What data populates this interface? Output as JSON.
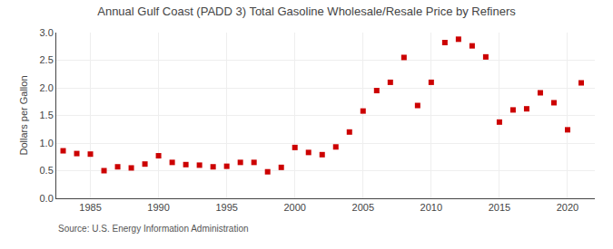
{
  "chart_data": {
    "type": "scatter",
    "title": "Annual Gulf Coast (PADD 3) Total Gasoline Wholesale/Resale Price by Refiners",
    "ylabel": "Dollars per Gallon",
    "annotations": [
      "Source: U.S. Energy Information Administration"
    ],
    "x": [
      1983,
      1984,
      1985,
      1986,
      1987,
      1988,
      1989,
      1990,
      1991,
      1992,
      1993,
      1994,
      1995,
      1996,
      1997,
      1998,
      1999,
      2000,
      2001,
      2002,
      2003,
      2004,
      2005,
      2006,
      2007,
      2008,
      2009,
      2010,
      2011,
      2012,
      2013,
      2014,
      2015,
      2016,
      2017,
      2018,
      2019,
      2020,
      2021
    ],
    "values": [
      0.86,
      0.81,
      0.8,
      0.5,
      0.57,
      0.55,
      0.62,
      0.77,
      0.65,
      0.61,
      0.6,
      0.57,
      0.58,
      0.65,
      0.65,
      0.48,
      0.56,
      0.92,
      0.83,
      0.79,
      0.93,
      1.2,
      1.58,
      1.95,
      2.1,
      2.55,
      1.68,
      2.1,
      2.82,
      2.88,
      2.76,
      2.56,
      1.38,
      1.6,
      1.62,
      1.91,
      1.73,
      1.24,
      2.09
    ],
    "color": "#cc0000",
    "marker": "square",
    "xlim": [
      1982.5,
      2022
    ],
    "ylim": [
      0.0,
      3.0
    ],
    "xticks": [
      1985,
      1990,
      1995,
      2000,
      2005,
      2010,
      2015,
      2020
    ],
    "yticks": [
      {
        "value": 0.0,
        "label": "0.0"
      },
      0.5,
      {
        "value": 1.0,
        "label": "1.0"
      },
      1.5,
      {
        "value": 2.0,
        "label": "2.0"
      },
      2.5,
      {
        "value": 3.0,
        "label": "3.0"
      }
    ],
    "grid": true
  }
}
